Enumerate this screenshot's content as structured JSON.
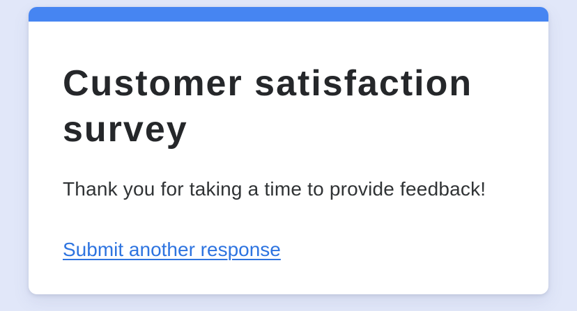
{
  "page": {
    "background_color": "#e1e7f9"
  },
  "card": {
    "accent_color": "#4685f2",
    "background_color": "#ffffff",
    "title": "Customer satisfaction survey",
    "title_color": "#25272a",
    "subtitle": "Thank you for taking a time to provide feedback!",
    "subtitle_color": "#303335",
    "link_label": "Submit another response",
    "link_color": "#2e74e0"
  }
}
